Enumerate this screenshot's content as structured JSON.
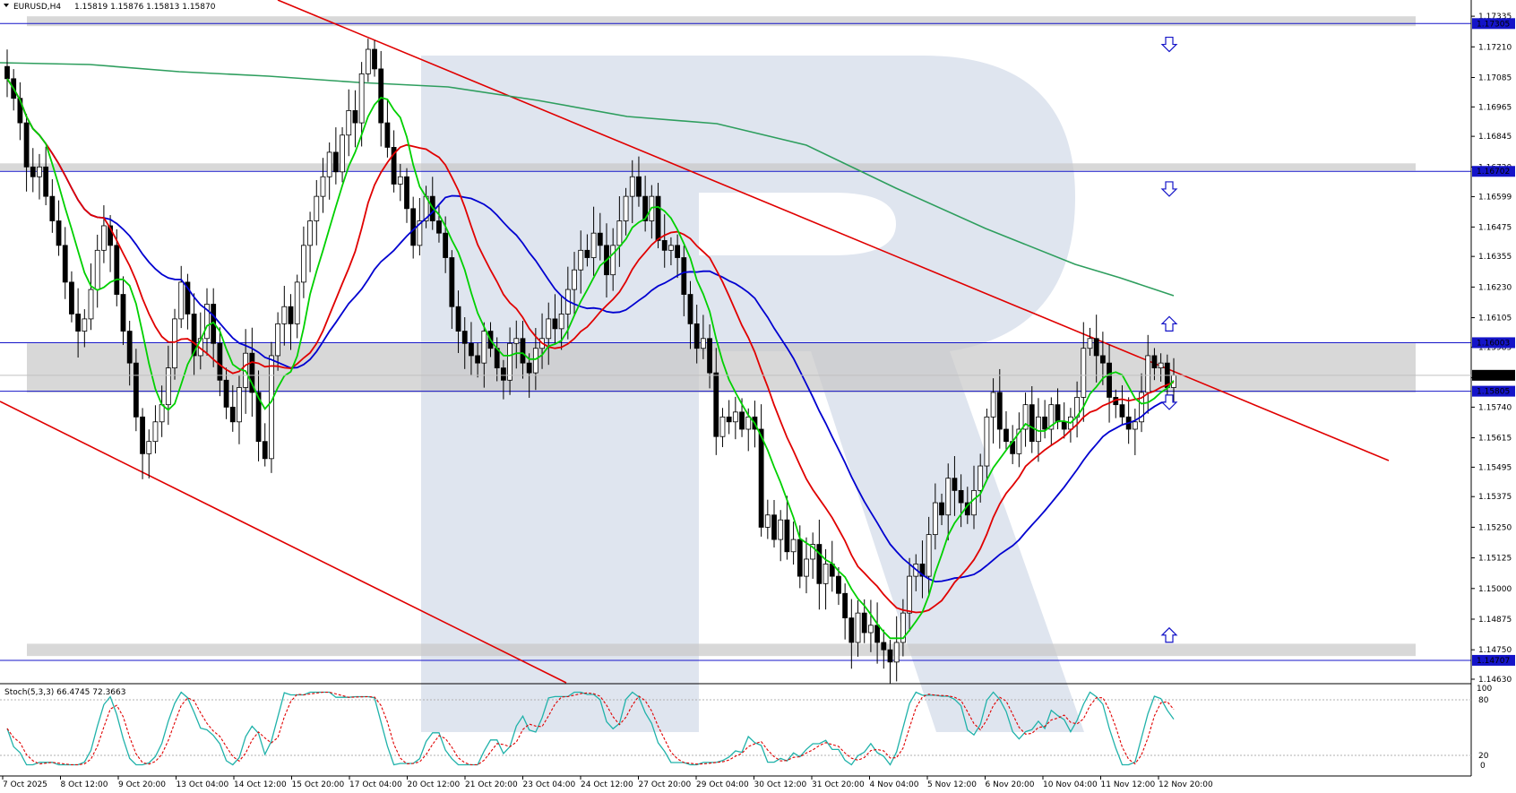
{
  "header": {
    "symbol": "EURUSD,H4",
    "ohlc": "1.15819 1.15876 1.15813 1.15870"
  },
  "indicator": {
    "label": "Stoch(5,3,3) 66.4745 72.3663",
    "levels": [
      "100",
      "80",
      "20",
      "0"
    ]
  },
  "colors": {
    "candle_up": "#ffffff",
    "candle_down": "#000000",
    "ma_fast": "#00d000",
    "ma_mid": "#e00000",
    "ma_slow": "#0000d0",
    "ma_long": "#2e9e5e",
    "trendline": "#e00000",
    "level_line": "#1414c8",
    "zone": "#c8c8c8",
    "stoch_main": "#20b2aa",
    "stoch_signal": "#e00000",
    "watermark": "#dfe5ef"
  },
  "chart_data": {
    "type": "candlestick",
    "price_axis": {
      "ticks": [
        "1.17335",
        "1.17210",
        "1.17085",
        "1.16965",
        "1.16845",
        "1.16720",
        "1.16599",
        "1.16475",
        "1.16355",
        "1.16230",
        "1.16105",
        "1.15985",
        "1.15860",
        "1.15740",
        "1.15615",
        "1.15495",
        "1.15375",
        "1.15250",
        "1.15125",
        "1.15000",
        "1.14875",
        "1.14750",
        "1.14630"
      ],
      "range": [
        1.1463,
        1.1735
      ]
    },
    "time_axis": {
      "labels": [
        "7 Oct 2025",
        "8 Oct 12:00",
        "9 Oct 20:00",
        "13 Oct 04:00",
        "14 Oct 12:00",
        "15 Oct 20:00",
        "17 Oct 04:00",
        "20 Oct 12:00",
        "21 Oct 20:00",
        "23 Oct 04:00",
        "24 Oct 12:00",
        "27 Oct 20:00",
        "29 Oct 04:00",
        "30 Oct 12:00",
        "31 Oct 20:00",
        "4 Nov 04:00",
        "5 Nov 12:00",
        "6 Nov 20:00",
        "10 Nov 04:00",
        "11 Nov 12:00",
        "12 Nov 20:00"
      ]
    },
    "horizontal_levels": [
      {
        "price": 1.17305,
        "label": "1.17305"
      },
      {
        "price": 1.16702,
        "label": "1.16702"
      },
      {
        "price": 1.16003,
        "label": "1.16003"
      },
      {
        "price": 1.15805,
        "label": "1.15805"
      },
      {
        "price": 1.14707,
        "label": "1.14707"
      }
    ],
    "current_price": {
      "price": 1.1587,
      "label": "1.15870"
    },
    "zones": [
      {
        "from": 1.1728,
        "to": 1.1732
      },
      {
        "from": 1.167,
        "to": 1.1672
      },
      {
        "from": 1.158,
        "to": 1.16
      },
      {
        "from": 1.1471,
        "to": 1.1476
      }
    ],
    "signal_arrows": [
      {
        "direction": "down",
        "price": 1.1722
      },
      {
        "direction": "down",
        "price": 1.1663
      },
      {
        "direction": "up",
        "price": 1.1608
      },
      {
        "direction": "down",
        "price": 1.1576
      },
      {
        "direction": "up",
        "price": 1.1481
      }
    ],
    "closes": [
      1.1708,
      1.17,
      1.169,
      1.1672,
      1.1668,
      1.1672,
      1.166,
      1.165,
      1.164,
      1.1625,
      1.1612,
      1.1605,
      1.161,
      1.1622,
      1.1638,
      1.1648,
      1.164,
      1.162,
      1.1605,
      1.1592,
      1.157,
      1.1555,
      1.156,
      1.1568,
      1.1575,
      1.159,
      1.161,
      1.1625,
      1.1612,
      1.1595,
      1.1602,
      1.1616,
      1.16,
      1.1585,
      1.1574,
      1.1568,
      1.1582,
      1.1596,
      1.158,
      1.156,
      1.1553,
      1.1595,
      1.1608,
      1.1615,
      1.1608,
      1.1625,
      1.164,
      1.165,
      1.166,
      1.1668,
      1.1678,
      1.167,
      1.1685,
      1.1695,
      1.169,
      1.171,
      1.172,
      1.1712,
      1.169,
      1.168,
      1.1665,
      1.1668,
      1.1655,
      1.164,
      1.165,
      1.166,
      1.165,
      1.1645,
      1.1635,
      1.1615,
      1.1605,
      1.16,
      1.1595,
      1.1592,
      1.1605,
      1.1598,
      1.159,
      1.1585,
      1.16,
      1.1602,
      1.1592,
      1.1588,
      1.1598,
      1.1602,
      1.161,
      1.1606,
      1.1612,
      1.1622,
      1.163,
      1.1638,
      1.1635,
      1.1645,
      1.164,
      1.1628,
      1.164,
      1.165,
      1.166,
      1.1668,
      1.166,
      1.165,
      1.166,
      1.1642,
      1.1638,
      1.164,
      1.1635,
      1.162,
      1.1608,
      1.1598,
      1.1602,
      1.1588,
      1.1562,
      1.157,
      1.1568,
      1.1572,
      1.1565,
      1.157,
      1.1565,
      1.1525,
      1.153,
      1.152,
      1.1528,
      1.1515,
      1.152,
      1.1505,
      1.1512,
      1.1518,
      1.1502,
      1.151,
      1.1505,
      1.1498,
      1.1488,
      1.1478,
      1.149,
      1.1482,
      1.1485,
      1.1478,
      1.1475,
      1.147,
      1.1478,
      1.149,
      1.1505,
      1.151,
      1.1505,
      1.1522,
      1.1535,
      1.153,
      1.1545,
      1.154,
      1.1535,
      1.153,
      1.154,
      1.155,
      1.157,
      1.158,
      1.1565,
      1.156,
      1.1555,
      1.1565,
      1.1575,
      1.156,
      1.157,
      1.1565,
      1.1575,
      1.1568,
      1.1565,
      1.157,
      1.1578,
      1.1598,
      1.1602,
      1.1595,
      1.1592,
      1.1578,
      1.1575,
      1.157,
      1.1565,
      1.1568,
      1.158,
      1.1595,
      1.159,
      1.1592,
      1.1582,
      1.1587
    ]
  }
}
